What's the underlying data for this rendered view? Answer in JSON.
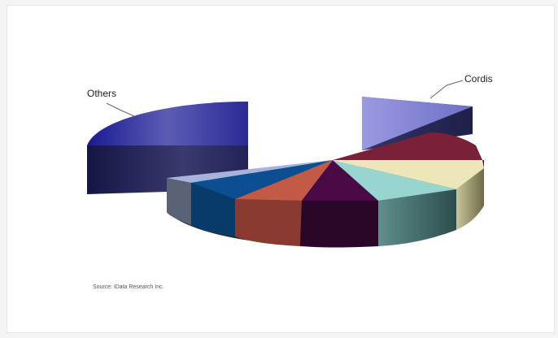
{
  "chart_data": {
    "type": "pie",
    "style": "3d-exploded",
    "slices": [
      {
        "label": "Others",
        "color": "#3a3a96"
      },
      {
        "label": "Cordis",
        "color": "#8a8ad6"
      },
      {
        "label": "",
        "color": "#7a2038"
      },
      {
        "label": "",
        "color": "#ece6b8"
      },
      {
        "label": "",
        "color": "#98d4d0"
      },
      {
        "label": "",
        "color": "#4a0a46"
      },
      {
        "label": "",
        "color": "#c25a45"
      },
      {
        "label": "",
        "color": "#0b4e92"
      },
      {
        "label": "",
        "color": "#a8b2dc"
      }
    ]
  },
  "source_text": "Source: iData Research Inc."
}
